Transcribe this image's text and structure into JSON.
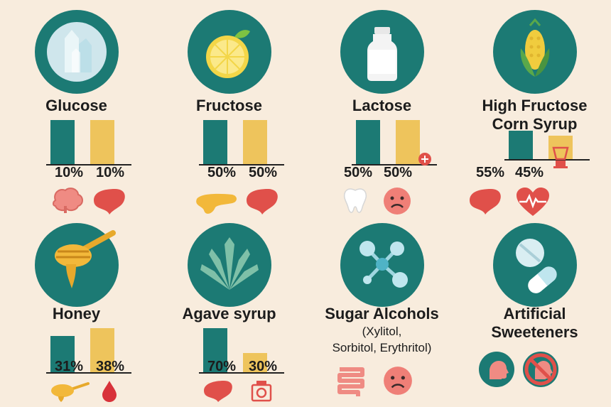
{
  "items": [
    {
      "title": "Glucose",
      "subtitle": "",
      "subtitle2": "",
      "p1": "10%",
      "p2": "10%",
      "v1": 10,
      "v2": 10,
      "icon": "crystals-icon",
      "organs": [
        "brain-icon",
        "liver-icon"
      ]
    },
    {
      "title": "Fructose",
      "subtitle": "",
      "subtitle2": "",
      "p1": "50%",
      "p2": "50%",
      "v1": 50,
      "v2": 50,
      "icon": "lemon-icon",
      "organs": [
        "pancreas-icon",
        "liver-icon"
      ]
    },
    {
      "title": "Lactose",
      "subtitle": "",
      "subtitle2": "",
      "p1": "50%",
      "p2": "50%",
      "v1": 50,
      "v2": 50,
      "icon": "milk-bottle-icon",
      "organs": [
        "tooth-icon",
        "sad-face-icon"
      ]
    },
    {
      "title": "High Fructose",
      "subtitle": "Corn Syrup",
      "subtitle2": "",
      "p1": "55%",
      "p2": "45%",
      "v1": 55,
      "v2": 45,
      "icon": "corn-icon",
      "organs": [
        "liver-icon",
        "heart-pulse-icon"
      ]
    },
    {
      "title": "Honey",
      "subtitle": "",
      "subtitle2": "",
      "p1": "31%",
      "p2": "38%",
      "v1": 31,
      "v2": 38,
      "icon": "honey-dipper-icon",
      "organs": [
        "honey-icon",
        "blood-drop-icon"
      ]
    },
    {
      "title": "Agave syrup",
      "subtitle": "",
      "subtitle2": "",
      "p1": "70%",
      "p2": "30%",
      "v1": 70,
      "v2": 30,
      "icon": "agave-plant-icon",
      "organs": [
        "liver-icon",
        "scale-icon"
      ]
    },
    {
      "title": "Sugar Alcohols",
      "subtitle": "(Xylitol,",
      "subtitle2": "Sorbitol, Erythritol)",
      "p1": "",
      "p2": "",
      "v1": 0,
      "v2": 0,
      "icon": "molecule-icon",
      "organs": [
        "intestine-icon",
        "sad-face-icon"
      ]
    },
    {
      "title": "Artificial",
      "subtitle": "Sweeteners",
      "subtitle2": "",
      "p1": "",
      "p2": "",
      "v1": 0,
      "v2": 0,
      "icon": "pill-icon",
      "organs": [
        "head-icon",
        "no-head-icon"
      ]
    }
  ],
  "colors": {
    "teal": "#1c7a74",
    "yellow": "#eec45c",
    "red": "#e0504a",
    "pink": "#ef8b83"
  }
}
